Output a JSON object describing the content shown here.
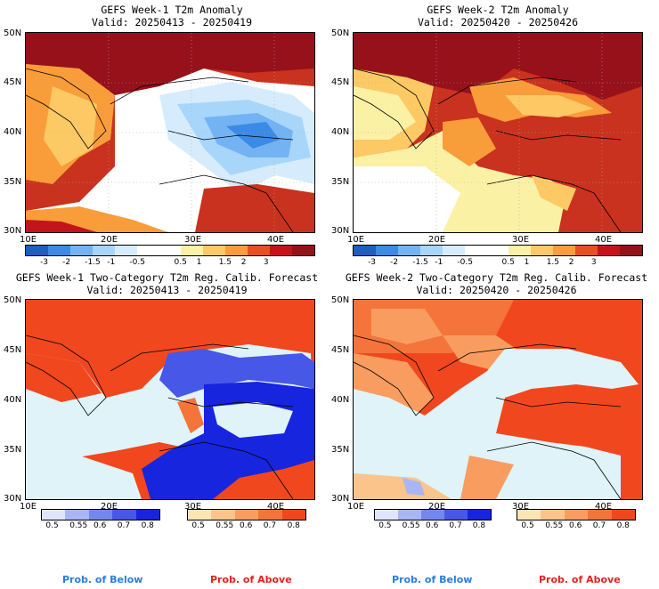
{
  "panels": [
    {
      "title1": "GEFS Week-1 T2m Anomaly",
      "title2": "Valid: 20250413 - 20250419"
    },
    {
      "title1": "GEFS Week-2 T2m Anomaly",
      "title2": "Valid: 20250420 - 20250426"
    },
    {
      "title1": "GEFS Week-1 Two-Category T2m Reg. Calib. Forecast",
      "title2": "Valid: 20250413 - 20250419"
    },
    {
      "title1": "GEFS Week-2 Two-Category T2m Reg. Calib. Forecast",
      "title2": "Valid: 20250420 - 20250426"
    }
  ],
  "lat_labels": [
    "50N",
    "45N",
    "40N",
    "35N",
    "30N"
  ],
  "lon_labels": [
    "10E",
    "20E",
    "30E",
    "40E"
  ],
  "anomaly_colorbar": {
    "colors": [
      "#1c5fc2",
      "#3a8ae6",
      "#73b3f3",
      "#a8d6fb",
      "#d6ecfd",
      "#ffffff",
      "#ffffff",
      "#fbf1a5",
      "#fcc964",
      "#f99c3a",
      "#e8501e",
      "#c4141b",
      "#96111a"
    ],
    "ticks": [
      "-3",
      "-2",
      "-1.5",
      "-1",
      "-0.5",
      "0.5",
      "1",
      "1.5",
      "2",
      "3"
    ]
  },
  "below_colorbar": {
    "colors": [
      "#dfe6fb",
      "#a8b6f6",
      "#7388ef",
      "#4757e8",
      "#1725de"
    ],
    "ticks": [
      "0.5",
      "0.55",
      "0.6",
      "0.7",
      "0.8"
    ]
  },
  "above_colorbar": {
    "colors": [
      "#fde5b3",
      "#fbc48a",
      "#f89d5f",
      "#f4743b",
      "#f0471f"
    ],
    "ticks": [
      "0.5",
      "0.55",
      "0.6",
      "0.7",
      "0.8"
    ]
  },
  "prob_below": "Prob. of Below",
  "prob_above": "Prob. of Above"
}
